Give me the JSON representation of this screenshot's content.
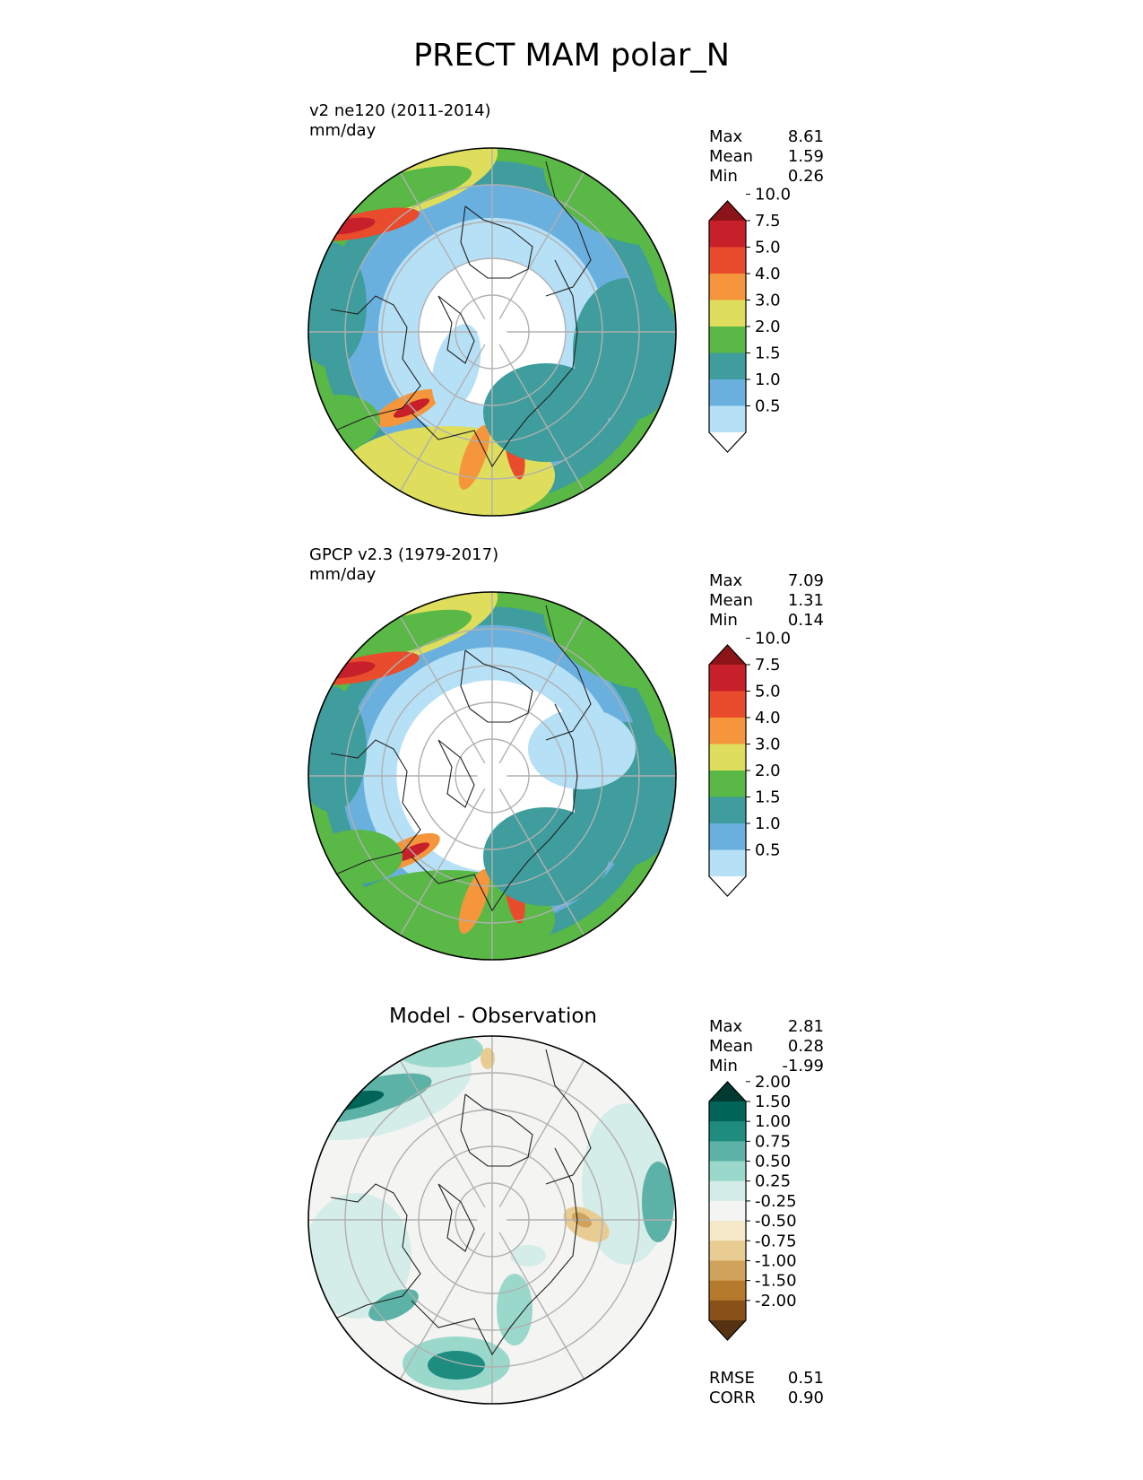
{
  "title": "PRECT MAM polar_N",
  "palettes": {
    "precip": [
      "#ffffff",
      "#b6e0f6",
      "#6ab0de",
      "#3f9d9d",
      "#5ab846",
      "#dede5c",
      "#f5963c",
      "#e84c2c",
      "#c8202a",
      "#8c1419"
    ],
    "diff": [
      "#553212",
      "#8a501a",
      "#b67a2c",
      "#d0a35c",
      "#e8cc92",
      "#f5e8c8",
      "#f4f4f2",
      "#d4ede8",
      "#9ad8cc",
      "#5cb2a6",
      "#1e8c7e",
      "#006458",
      "#013a30"
    ],
    "ocean_grid": "#b0b0b0",
    "coast": "#222222"
  },
  "panels": [
    {
      "label_line1": "v2 ne120 (2011-2014)",
      "label_line2": "mm/day",
      "stats": [
        {
          "name": "Max",
          "value": "8.61"
        },
        {
          "name": "Mean",
          "value": "1.59"
        },
        {
          "name": "Min",
          "value": "0.26"
        }
      ],
      "colorbar_ticks": [
        "0.5",
        "1.0",
        "1.5",
        "2.0",
        "3.0",
        "4.0",
        "5.0",
        "7.5",
        "10.0"
      ]
    },
    {
      "label_line1": "GPCP v2.3 (1979-2017)",
      "label_line2": "mm/day",
      "stats": [
        {
          "name": "Max",
          "value": "7.09"
        },
        {
          "name": "Mean",
          "value": "1.31"
        },
        {
          "name": "Min",
          "value": "0.14"
        }
      ],
      "colorbar_ticks": [
        "0.5",
        "1.0",
        "1.5",
        "2.0",
        "3.0",
        "4.0",
        "5.0",
        "7.5",
        "10.0"
      ]
    },
    {
      "title": "Model - Observation",
      "stats": [
        {
          "name": "Max",
          "value": "2.81"
        },
        {
          "name": "Mean",
          "value": "0.28"
        },
        {
          "name": "Min",
          "value": "-1.99"
        }
      ],
      "colorbar_ticks": [
        "-2.00",
        "-1.50",
        "-1.00",
        "-0.75",
        "-0.50",
        "-0.25",
        "0.25",
        "0.50",
        "0.75",
        "1.00",
        "1.50",
        "2.00"
      ],
      "footer_stats": [
        {
          "name": "RMSE",
          "value": "0.51"
        },
        {
          "name": "CORR",
          "value": "0.90"
        }
      ]
    }
  ],
  "chart_data": {
    "type": "heatmap",
    "projection": "north polar stereographic",
    "title": "PRECT MAM polar_N",
    "units": "mm/day",
    "fields": [
      {
        "name": "v2 ne120 (2011-2014)",
        "max": 8.61,
        "mean": 1.59,
        "min": 0.26,
        "levels": [
          0.5,
          1.0,
          1.5,
          2.0,
          3.0,
          4.0,
          5.0,
          7.5,
          10.0
        ]
      },
      {
        "name": "GPCP v2.3 (1979-2017)",
        "max": 7.09,
        "mean": 1.31,
        "min": 0.14,
        "levels": [
          0.5,
          1.0,
          1.5,
          2.0,
          3.0,
          4.0,
          5.0,
          7.5,
          10.0
        ]
      },
      {
        "name": "Model - Observation",
        "max": 2.81,
        "mean": 0.28,
        "min": -1.99,
        "rmse": 0.51,
        "corr": 0.9,
        "levels": [
          -2.0,
          -1.5,
          -1.0,
          -0.75,
          -0.5,
          -0.25,
          0.25,
          0.5,
          0.75,
          1.0,
          1.5,
          2.0
        ]
      }
    ]
  }
}
